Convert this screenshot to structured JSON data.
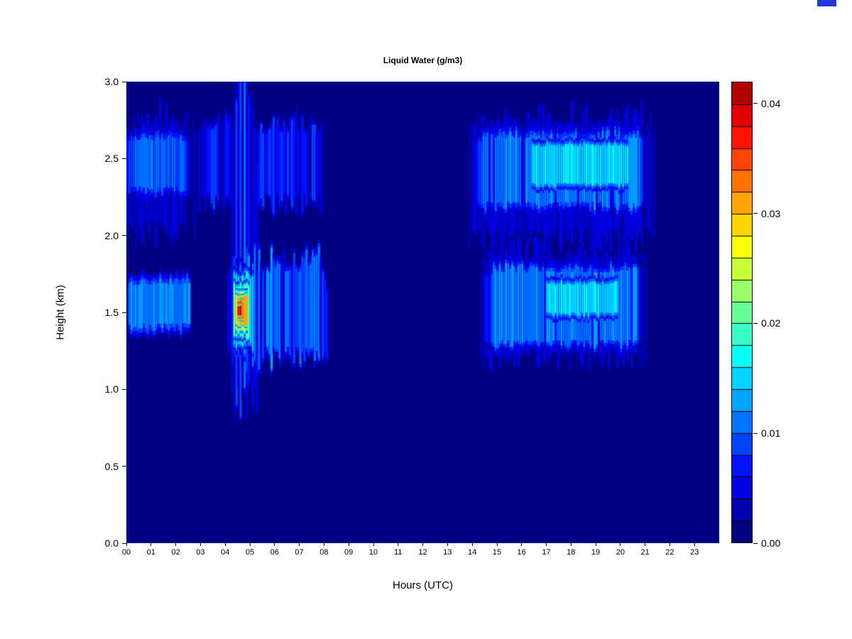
{
  "page": {
    "background": "#ffffff"
  },
  "artifact": {
    "color": "#2438d8"
  },
  "chart_data": {
    "type": "heatmap",
    "title": "Liquid Water (g/m3)",
    "xlabel": "Hours (UTC)",
    "ylabel": "Height (km)",
    "units": "g/m3",
    "xlim": [
      0,
      24
    ],
    "ylim": [
      0,
      3
    ],
    "grid": false,
    "x_ticks": [
      "00",
      "01",
      "02",
      "03",
      "04",
      "05",
      "06",
      "07",
      "08",
      "09",
      "10",
      "11",
      "12",
      "13",
      "14",
      "15",
      "16",
      "17",
      "18",
      "19",
      "20",
      "21",
      "22",
      "23"
    ],
    "y_ticks": [
      "0.0",
      "0.5",
      "1.0",
      "1.5",
      "2.0",
      "2.5",
      "3.0"
    ],
    "colorbar": {
      "vmin": 0,
      "vmax": 0.042,
      "levels": 21,
      "colormap": "jet",
      "ticks": [
        "0.00",
        "0.01",
        "0.02",
        "0.03",
        "0.04"
      ],
      "position": "right"
    },
    "background_value": 0,
    "regions": [
      {
        "name": "upper-left-band-fringe",
        "t0": 0,
        "t1": 2.85,
        "h0": 2.1,
        "h1": 2.68,
        "v": 0.005,
        "jitter": 0.2,
        "soft": 0.03,
        "streaky": true,
        "vnoise": 0.5
      },
      {
        "name": "upper-left-band-core",
        "t0": 0,
        "t1": 2.6,
        "h0": 2.32,
        "h1": 2.62,
        "v": 0.011,
        "jitter": 0.05,
        "soft": 0.07,
        "streaky": true,
        "vnoise": 0.3
      },
      {
        "name": "upper-band-03-04",
        "t0": 2.9,
        "t1": 4.35,
        "h0": 2.28,
        "h1": 2.68,
        "v": 0.007,
        "jitter": 0.12,
        "soft": 0.05,
        "streaky": true,
        "vnoise": 0.5
      },
      {
        "name": "lower-left-band",
        "t0": 0.05,
        "t1": 2.55,
        "h0": 1.43,
        "h1": 1.68,
        "v": 0.012,
        "jitter": 0.05,
        "soft": 0.06,
        "streaky": false,
        "vnoise": 0.15
      },
      {
        "name": "convective-column",
        "t0": 4.25,
        "t1": 5.3,
        "h0": 1.05,
        "h1": 2.9,
        "v": 0.009,
        "jitter": 0.3,
        "soft": 0.04,
        "streaky": true,
        "vnoise": 0.6
      },
      {
        "name": "morning-lower-layer",
        "t0": 4.05,
        "t1": 8.15,
        "h0": 1.28,
        "h1": 1.76,
        "v": 0.011,
        "jitter": 0.17,
        "soft": 0.05,
        "streaky": true,
        "vnoise": 0.4
      },
      {
        "name": "morning-upper-band",
        "t0": 4.45,
        "t1": 8.0,
        "h0": 2.28,
        "h1": 2.66,
        "v": 0.0075,
        "jitter": 0.15,
        "soft": 0.04,
        "streaky": true,
        "vnoise": 0.5
      },
      {
        "name": "hot-outer-cyan",
        "t0": 4.3,
        "t1": 5.15,
        "h0": 1.3,
        "h1": 1.72,
        "v": 0.016,
        "jitter": 0.06,
        "soft": 0.04,
        "streaky": false,
        "vnoise": 0.15
      },
      {
        "name": "hot-ring-green",
        "t0": 4.36,
        "t1": 5.02,
        "h0": 1.35,
        "h1": 1.67,
        "v": 0.02,
        "jitter": 0.03,
        "soft": 0.03,
        "streaky": false,
        "vnoise": 0.12
      },
      {
        "name": "hot-ring-yellow",
        "t0": 4.4,
        "t1": 4.95,
        "h0": 1.39,
        "h1": 1.63,
        "v": 0.026,
        "jitter": 0.02,
        "soft": 0.025,
        "streaky": false,
        "vnoise": 0.1
      },
      {
        "name": "hot-inner-orange",
        "t0": 4.44,
        "t1": 4.88,
        "h0": 1.43,
        "h1": 1.6,
        "v": 0.031,
        "jitter": 0.015,
        "soft": 0.02,
        "streaky": false,
        "vnoise": 0.08
      },
      {
        "name": "hot-core-red",
        "t0": 4.47,
        "t1": 4.76,
        "h0": 1.46,
        "h1": 1.57,
        "v": 0.035,
        "jitter": 0.01,
        "soft": 0.015,
        "streaky": false,
        "vnoise": 0.08
      },
      {
        "name": "hot-peak",
        "t0": 4.5,
        "t1": 4.64,
        "h0": 1.48,
        "h1": 1.54,
        "v": 0.04,
        "jitter": 0.005,
        "soft": 0.01,
        "streaky": false,
        "vnoise": 0.05
      },
      {
        "name": "afternoon-upper-fringe",
        "t0": 13.85,
        "t1": 21.45,
        "h0": 2.05,
        "h1": 2.7,
        "v": 0.005,
        "jitter": 0.16,
        "soft": 0.03,
        "streaky": true,
        "vnoise": 0.5
      },
      {
        "name": "afternoon-upper-core",
        "t0": 14.15,
        "t1": 21.1,
        "h0": 2.22,
        "h1": 2.63,
        "v": 0.012,
        "jitter": 0.06,
        "soft": 0.06,
        "streaky": true,
        "vnoise": 0.25
      },
      {
        "name": "afternoon-upper-bright",
        "t0": 16.4,
        "t1": 20.35,
        "h0": 2.34,
        "h1": 2.58,
        "v": 0.016,
        "jitter": 0.03,
        "soft": 0.04,
        "streaky": false,
        "vnoise": 0.15
      },
      {
        "name": "afternoon-lower-fringe",
        "t0": 14.35,
        "t1": 21.2,
        "h0": 1.26,
        "h1": 1.85,
        "v": 0.005,
        "jitter": 0.14,
        "soft": 0.03,
        "streaky": true,
        "vnoise": 0.5
      },
      {
        "name": "afternoon-lower-core",
        "t0": 14.5,
        "t1": 20.95,
        "h0": 1.32,
        "h1": 1.76,
        "v": 0.012,
        "jitter": 0.06,
        "soft": 0.05,
        "streaky": true,
        "vnoise": 0.25
      },
      {
        "name": "afternoon-lower-bright",
        "t0": 17.0,
        "t1": 19.9,
        "h0": 1.5,
        "h1": 1.68,
        "v": 0.016,
        "jitter": 0.03,
        "soft": 0.04,
        "streaky": false,
        "vnoise": 0.15
      }
    ]
  }
}
